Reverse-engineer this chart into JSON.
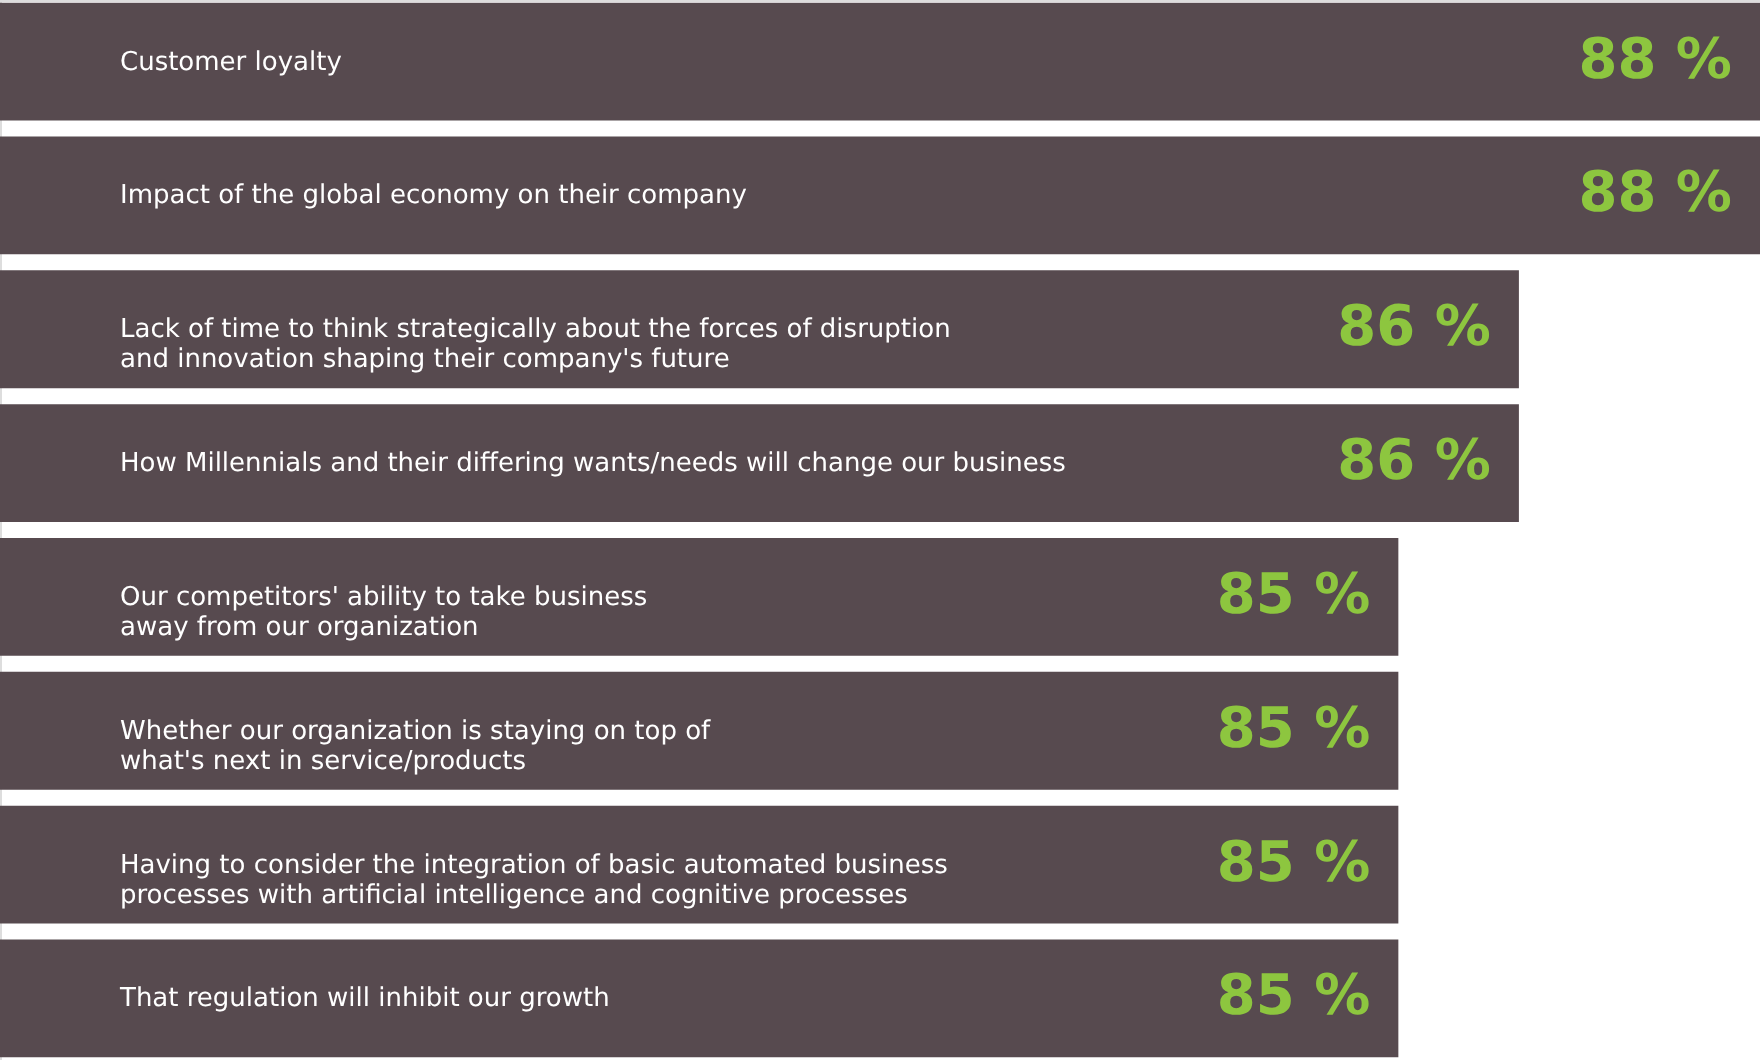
{
  "chart_data": {
    "type": "bar",
    "orientation": "horizontal",
    "categories": [
      "Customer loyalty",
      "Impact of the global economy on their company",
      "Lack of time to think strategically about the forces of disruption\nand innovation shaping their company's future",
      "How Millennials and their differing wants/needs will change our business",
      "Our competitors' ability to take business\naway from our organization",
      "Whether our organization is staying on top of\nwhat's next in service/products",
      "Having to consider the integration of basic automated business\nprocesses with artificial intelligence and cognitive processes",
      "That regulation will inhibit our growth"
    ],
    "values": [
      88,
      88,
      86,
      86,
      85,
      85,
      85,
      85
    ],
    "value_labels": [
      "88 %",
      "88 %",
      "86 %",
      "86 %",
      "85 %",
      "85 %",
      "85 %",
      "85 %"
    ],
    "color": "#574a4f",
    "xlim": [
      73.4,
      88
    ]
  }
}
